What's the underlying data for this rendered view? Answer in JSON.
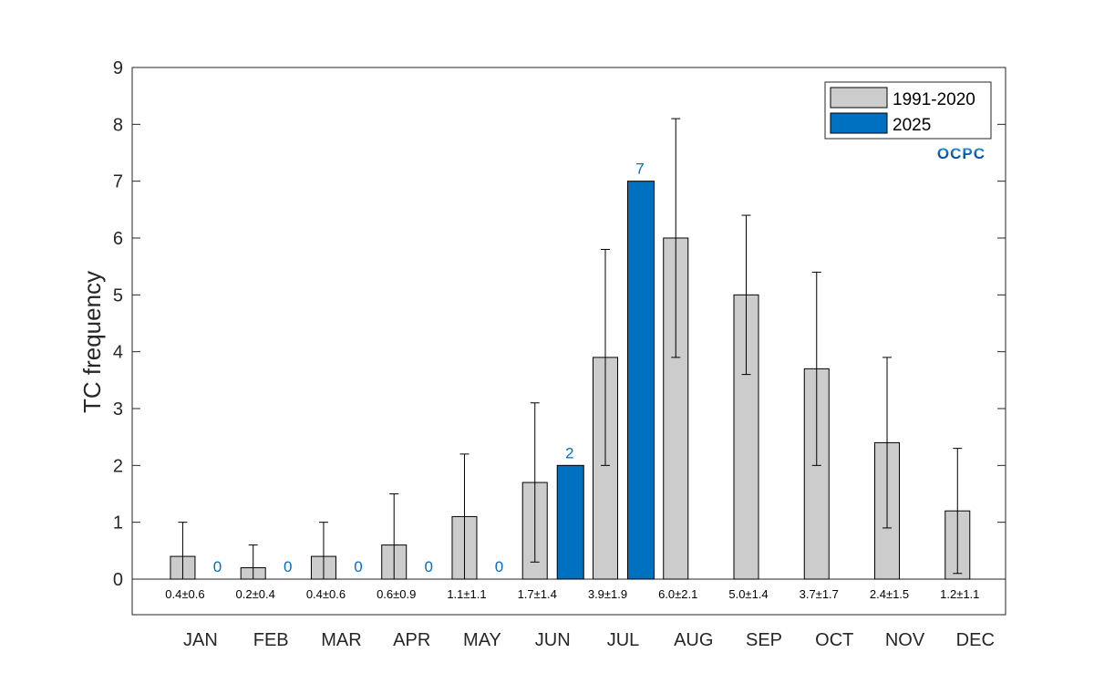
{
  "colors": {
    "climatology": "#cccccc",
    "current": "#0070c0",
    "value_label": "#0070c0",
    "axis": "#262626"
  },
  "logo": {
    "text": "OCPC"
  },
  "chart_data": {
    "type": "bar",
    "ylabel": "TC frequency",
    "ylim": [
      0,
      9
    ],
    "yticks": [
      "0",
      "1",
      "2",
      "3",
      "4",
      "5",
      "6",
      "7",
      "8",
      "9"
    ],
    "categories": [
      "JAN",
      "FEB",
      "MAR",
      "APR",
      "MAY",
      "JUN",
      "JUL",
      "AUG",
      "SEP",
      "OCT",
      "NOV",
      "DEC"
    ],
    "series": [
      {
        "name": "1991-2020",
        "values": [
          0.4,
          0.2,
          0.4,
          0.6,
          1.1,
          1.7,
          3.9,
          6.0,
          5.0,
          3.7,
          2.4,
          1.2
        ],
        "std": [
          0.6,
          0.4,
          0.6,
          0.9,
          1.1,
          1.4,
          1.9,
          2.1,
          1.4,
          1.7,
          1.5,
          1.1
        ]
      },
      {
        "name": "2025",
        "values": [
          0,
          0,
          0,
          0,
          0,
          2,
          7,
          null,
          null,
          null,
          null,
          null
        ],
        "labels": [
          "0",
          "0",
          "0",
          "0",
          "0",
          "2",
          "7",
          "",
          "",
          "",
          "",
          ""
        ]
      }
    ],
    "stat_labels": [
      "0.4±0.6",
      "0.2±0.4",
      "0.4±0.6",
      "0.6±0.9",
      "1.1±1.1",
      "1.7±1.4",
      "3.9±1.9",
      "6.0±2.1",
      "5.0±1.4",
      "3.7±1.7",
      "2.4±1.5",
      "1.2±1.1"
    ],
    "legend": {
      "position": "top-right",
      "entries": [
        "1991-2020",
        "2025"
      ]
    },
    "grid": false
  }
}
